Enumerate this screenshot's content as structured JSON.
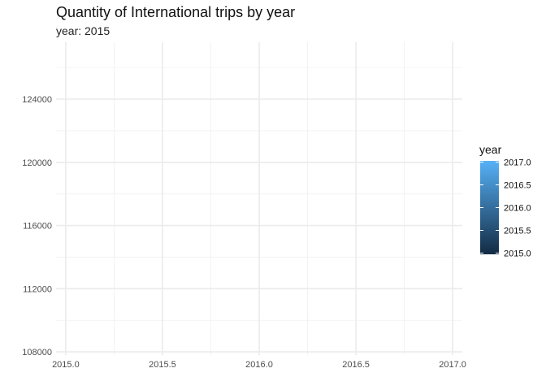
{
  "chart_data": {
    "type": "scatter",
    "title": "Quantity of International trips by year",
    "subtitle": "year: 2015",
    "xlabel": "",
    "ylabel": "",
    "xlim": [
      2014.95,
      2017.05
    ],
    "ylim": [
      107800,
      127600
    ],
    "x_ticks": [
      2015.0,
      2015.5,
      2016.0,
      2016.5,
      2017.0
    ],
    "x_tick_labels": [
      "2015.0",
      "2015.5",
      "2016.0",
      "2016.5",
      "2017.0"
    ],
    "y_ticks": [
      108000,
      112000,
      116000,
      120000,
      124000
    ],
    "y_tick_labels": [
      "108000",
      "112000",
      "116000",
      "120000",
      "124000"
    ],
    "grid": true,
    "series": [],
    "legend": {
      "title": "year",
      "placement": "right",
      "type": "colorbar",
      "range": [
        2015.0,
        2017.0
      ],
      "ticks": [
        2015.0,
        2015.5,
        2016.0,
        2016.5,
        2017.0
      ],
      "tick_labels": [
        "2015.0",
        "2015.5",
        "2016.0",
        "2016.5",
        "2017.0"
      ],
      "color_low": "#132b43",
      "color_high": "#56b1f7"
    }
  }
}
